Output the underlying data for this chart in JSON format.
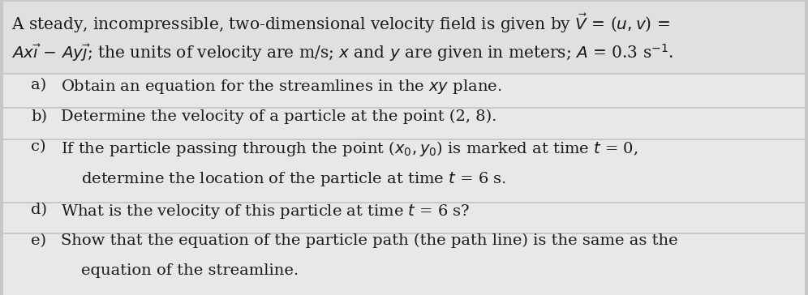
{
  "bg_color": "#c8c8c8",
  "box_color_header": "#e0e0e0",
  "box_color_items": "#e8e8e8",
  "text_color": "#1a1a1a",
  "font_size_main": 14.5,
  "font_size_items": 14.0,
  "fig_width": 9.96,
  "fig_height": 3.64,
  "header_line1": "A steady, incompressible, two-dimensional velocity field is given by $\\vec{V}$ = ($u, v$) =",
  "header_line2": "$Ax\\vec{\\imath}$ − $Ay\\vec{\\jmath}$; the units of velocity are m/s; $x$ and $y$ are given in meters; $A$ = 0.3 s$^{-1}$.",
  "item_a_label": "a)",
  "item_a_text": "Obtain an equation for the streamlines in the $xy$ plane.",
  "item_b_label": "b)",
  "item_b_text": "Determine the velocity of a particle at the point (2, 8).",
  "item_c_label": "c)",
  "item_c_line1": "If the particle passing through the point ($x_0, y_0$) is marked at time $t$ = 0,",
  "item_c_line2": "determine the location of the particle at time $t$ = 6 s.",
  "item_d_label": "d)",
  "item_d_text": "What is the velocity of this particle at time $t$ = 6 s?",
  "item_e_label": "e)",
  "item_e_line1": "Show that the equation of the particle path (the path line) is the same as the",
  "item_e_line2": "equation of the streamline."
}
